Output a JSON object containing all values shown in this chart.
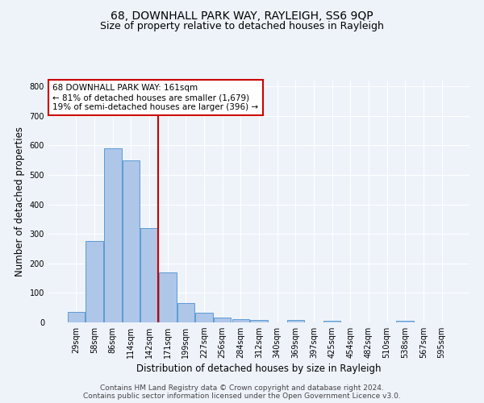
{
  "title": "68, DOWNHALL PARK WAY, RAYLEIGH, SS6 9QP",
  "subtitle": "Size of property relative to detached houses in Rayleigh",
  "xlabel": "Distribution of detached houses by size in Rayleigh",
  "ylabel": "Number of detached properties",
  "categories": [
    "29sqm",
    "58sqm",
    "86sqm",
    "114sqm",
    "142sqm",
    "171sqm",
    "199sqm",
    "227sqm",
    "256sqm",
    "284sqm",
    "312sqm",
    "340sqm",
    "369sqm",
    "397sqm",
    "425sqm",
    "454sqm",
    "482sqm",
    "510sqm",
    "538sqm",
    "567sqm",
    "595sqm"
  ],
  "values": [
    35,
    275,
    590,
    550,
    320,
    170,
    65,
    33,
    17,
    12,
    8,
    0,
    8,
    0,
    5,
    0,
    0,
    0,
    5,
    0,
    0
  ],
  "bar_color": "#aec6e8",
  "bar_edge_color": "#5b9bd5",
  "property_line_label": "68 DOWNHALL PARK WAY: 161sqm",
  "annotation_line1": "← 81% of detached houses are smaller (1,679)",
  "annotation_line2": "19% of semi-detached houses are larger (396) →",
  "annotation_box_color": "#ffffff",
  "annotation_box_edge_color": "#cc0000",
  "vline_color": "#cc0000",
  "ylim": [
    0,
    820
  ],
  "yticks": [
    0,
    100,
    200,
    300,
    400,
    500,
    600,
    700,
    800
  ],
  "footer1": "Contains HM Land Registry data © Crown copyright and database right 2024.",
  "footer2": "Contains public sector information licensed under the Open Government Licence v3.0.",
  "bg_color": "#eef3fa",
  "plot_bg_color": "#eef3fa",
  "grid_color": "#ffffff",
  "title_fontsize": 10,
  "subtitle_fontsize": 9,
  "axis_label_fontsize": 8.5,
  "tick_fontsize": 7,
  "footer_fontsize": 6.5,
  "annotation_fontsize": 7.5
}
